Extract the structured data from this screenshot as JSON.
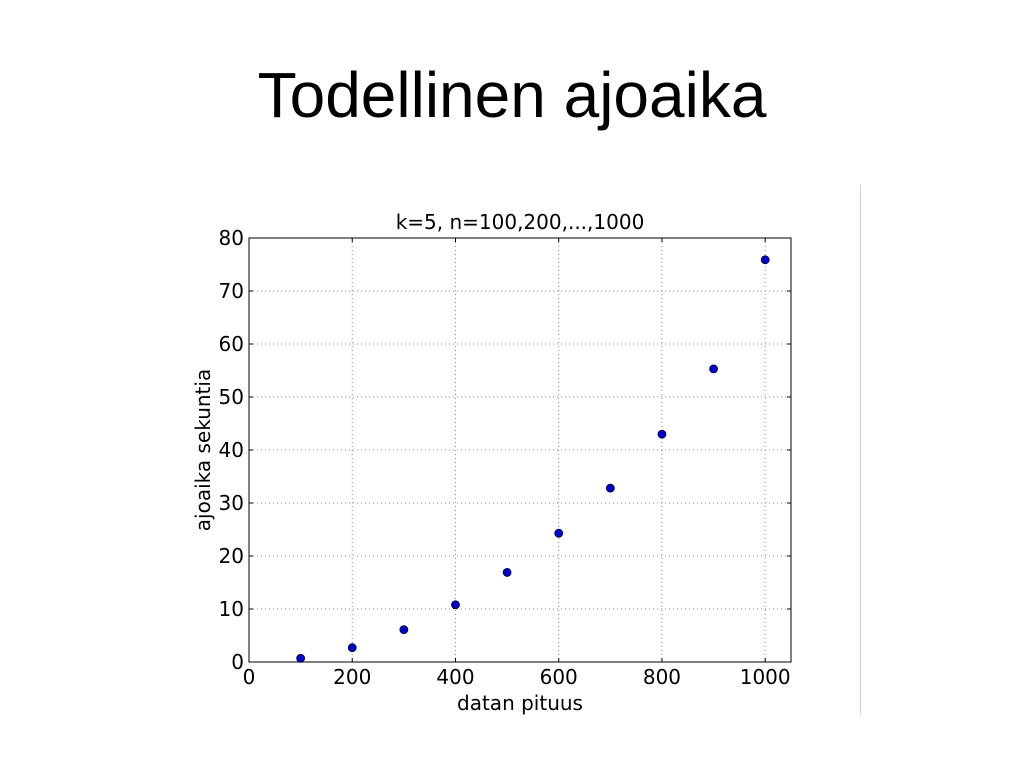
{
  "slide": {
    "title": "Todellinen ajoaika"
  },
  "chart_data": {
    "type": "scatter",
    "title": "k=5, n=100,200,...,1000",
    "xlabel": "datan pituus",
    "ylabel": "ajoaika sekuntia",
    "xlim": [
      0,
      1050
    ],
    "ylim": [
      0,
      80
    ],
    "xticks": [
      0,
      200,
      400,
      600,
      800,
      1000
    ],
    "yticks": [
      0,
      10,
      20,
      30,
      40,
      50,
      60,
      70,
      80
    ],
    "grid": true,
    "series": [
      {
        "color": "#0000cc",
        "x": [
          100,
          200,
          300,
          400,
          500,
          600,
          700,
          800,
          900,
          1000
        ],
        "y": [
          0.7,
          2.7,
          6.1,
          10.8,
          16.9,
          24.3,
          32.8,
          43.0,
          55.3,
          75.9
        ]
      }
    ]
  }
}
